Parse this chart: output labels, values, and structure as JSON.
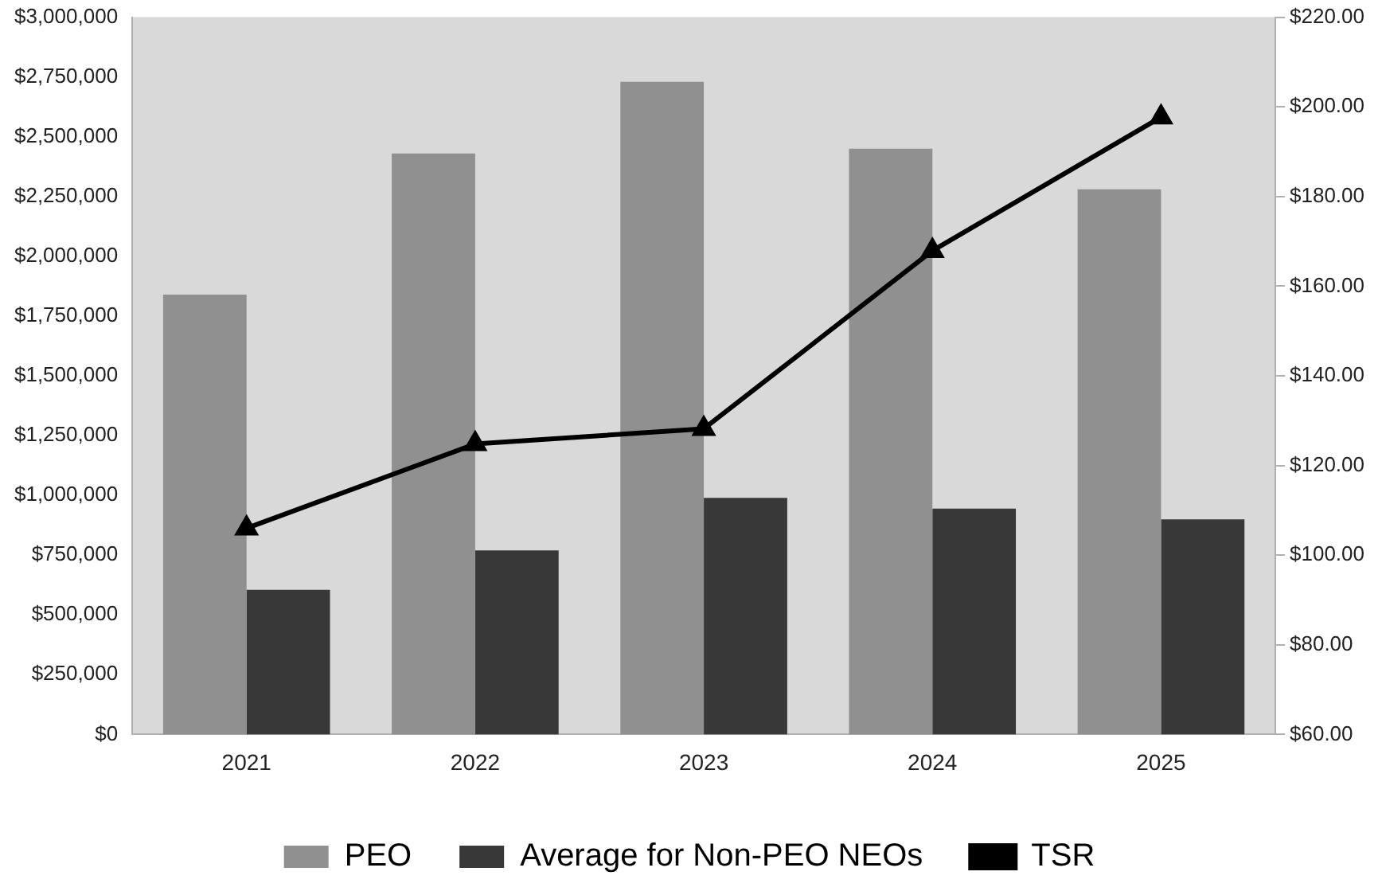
{
  "chart_data": {
    "type": "bar",
    "categories": [
      "2021",
      "2022",
      "2023",
      "2024",
      "2025"
    ],
    "series": [
      {
        "name": "PEO",
        "color": "#909090",
        "values": [
          1840000,
          2430000,
          2730000,
          2450000,
          2280000
        ]
      },
      {
        "name": "Average for Non-PEO NEOs",
        "color": "#383838",
        "values": [
          605000,
          770000,
          990000,
          945000,
          900000
        ]
      },
      {
        "name": "TSR",
        "type": "line",
        "axis": "y2",
        "color": "#000000",
        "marker": "triangle",
        "values": [
          106.0,
          124.8,
          128.2,
          167.9,
          197.7
        ]
      }
    ],
    "ylim": [
      0,
      3000000
    ],
    "yticks": [
      {
        "value": 0,
        "label": "$0"
      },
      {
        "value": 250000,
        "label": "$250,000"
      },
      {
        "value": 500000,
        "label": "$500,000"
      },
      {
        "value": 750000,
        "label": "$750,000"
      },
      {
        "value": 1000000,
        "label": "$1,000,000"
      },
      {
        "value": 1250000,
        "label": "$1,250,000"
      },
      {
        "value": 1500000,
        "label": "$1,500,000"
      },
      {
        "value": 1750000,
        "label": "$1,750,000"
      },
      {
        "value": 2000000,
        "label": "$2,000,000"
      },
      {
        "value": 2250000,
        "label": "$2,250,000"
      },
      {
        "value": 2500000,
        "label": "$2,500,000"
      },
      {
        "value": 2750000,
        "label": "$2,750,000"
      },
      {
        "value": 3000000,
        "label": "$3,000,000"
      }
    ],
    "y2lim": [
      60,
      220
    ],
    "y2ticks": [
      {
        "value": 60,
        "label": "$60.00"
      },
      {
        "value": 80,
        "label": "$80.00"
      },
      {
        "value": 100,
        "label": "$100.00"
      },
      {
        "value": 120,
        "label": "$120.00"
      },
      {
        "value": 140,
        "label": "$140.00"
      },
      {
        "value": 160,
        "label": "$160.00"
      },
      {
        "value": 180,
        "label": "$180.00"
      },
      {
        "value": 200,
        "label": "$200.00"
      },
      {
        "value": 220,
        "label": "$220.00"
      }
    ],
    "grid": false,
    "legend": "bottom"
  }
}
